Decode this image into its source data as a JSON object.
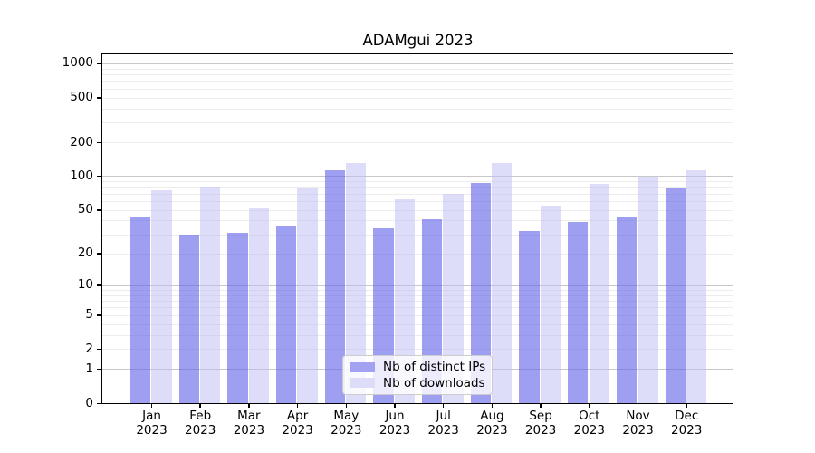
{
  "figure": {
    "title": "ADAMgui 2023",
    "background": "#ffffff"
  },
  "chart_data": {
    "type": "bar",
    "title": "ADAMgui 2023",
    "xlabel": "",
    "ylabel": "",
    "yscale": "log1p",
    "ylim": [
      0,
      1200
    ],
    "grid": true,
    "legend_position": "lower center",
    "y_ticks": [
      0,
      1,
      2,
      5,
      10,
      20,
      50,
      100,
      200,
      500,
      1000
    ],
    "y_major_gridlines": [
      1,
      10,
      100,
      1000
    ],
    "categories": [
      "Jan 2023",
      "Feb 2023",
      "Mar 2023",
      "Apr 2023",
      "May 2023",
      "Jun 2023",
      "Jul 2023",
      "Aug 2023",
      "Sep 2023",
      "Oct 2023",
      "Nov 2023",
      "Dec 2023"
    ],
    "series": [
      {
        "name": "Nb of distinct IPs",
        "values": [
          43,
          30,
          31,
          36,
          113,
          34,
          41,
          87,
          32,
          39,
          43,
          78
        ],
        "fill": "rgba(100,100,232,0.62)",
        "legend_color": "#a2a2f0"
      },
      {
        "name": "Nb of downloads",
        "values": [
          75,
          81,
          52,
          78,
          130,
          62,
          70,
          132,
          55,
          85,
          100,
          112
        ],
        "fill": "rgba(187,187,246,0.5)",
        "legend_color": "#ddddfa"
      }
    ]
  },
  "colors": {
    "grid_major": "#c8c8c8",
    "grid_minor": "#ececec",
    "axis": "#000000",
    "bar_ips": "#a1a1f0",
    "bar_downloads": "#dcdcfa"
  }
}
